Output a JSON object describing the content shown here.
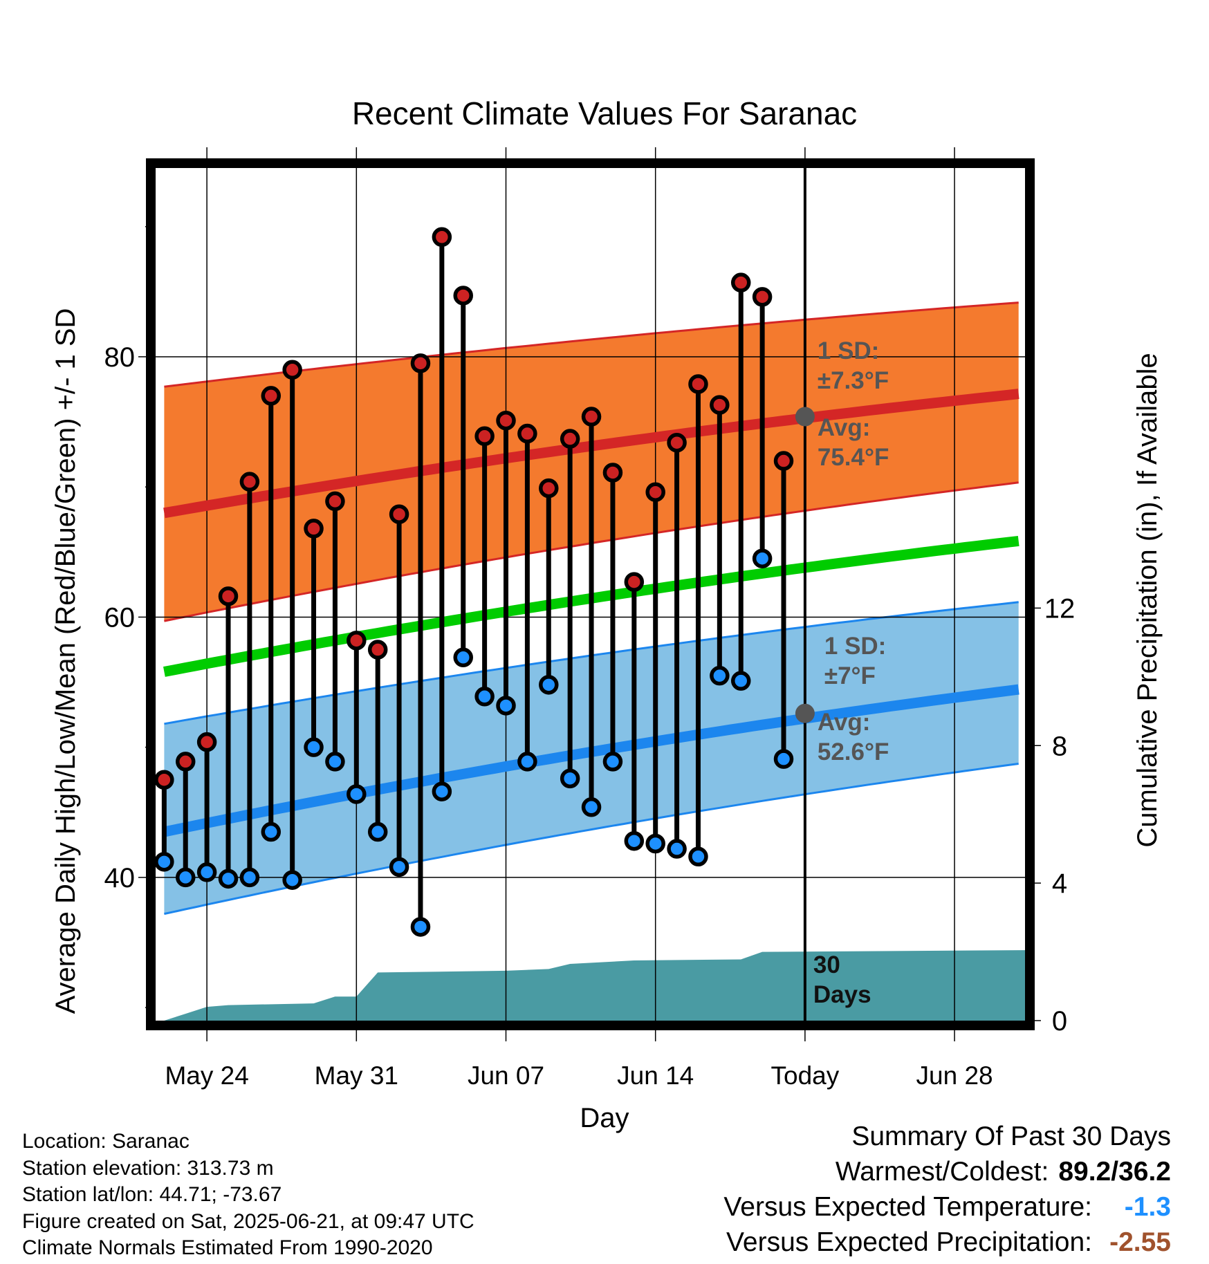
{
  "chart_data": {
    "type": "line",
    "title": "Recent Climate Values For Saranac",
    "xlabel": "Day",
    "ylabel_left": "Average Daily High/Low/Mean (Red/Blue/Green) +/- 1 SD",
    "ylabel_right": "Cumulative Precipitation (in), If Available",
    "x_tick_labels": [
      "May 24",
      "May 31",
      "Jun 07",
      "Jun 14",
      "Today",
      "Jun 28"
    ],
    "y_left_ticks": [
      40,
      60,
      80
    ],
    "y_left_range": [
      29,
      94.5
    ],
    "y_right_ticks": [
      0,
      4,
      8,
      12
    ],
    "y_right_range": [
      0,
      24.8
    ],
    "x_range_days_from_may21": [
      0.6,
      41.3
    ],
    "today_day_index": 31,
    "grid": true,
    "colors": {
      "high_band": "#f47a2e",
      "high_line": "#d42626",
      "low_band": "#85c1e6",
      "low_line": "#1c86ee",
      "mean_line": "#00cc00",
      "precip": "#4a9ba3",
      "high_marker": "#cc2222",
      "low_marker": "#1e90ff",
      "annotation": "#555555",
      "summary_temp": "#1e90ff",
      "summary_precip": "#a0522d"
    },
    "days": [
      "May 22",
      "May 23",
      "May 24",
      "May 25",
      "May 26",
      "May 27",
      "May 28",
      "May 29",
      "May 30",
      "May 31",
      "Jun 01",
      "Jun 02",
      "Jun 03",
      "Jun 04",
      "Jun 05",
      "Jun 06",
      "Jun 07",
      "Jun 08",
      "Jun 09",
      "Jun 10",
      "Jun 11",
      "Jun 12",
      "Jun 13",
      "Jun 14",
      "Jun 15",
      "Jun 16",
      "Jun 17",
      "Jun 18",
      "Jun 19",
      "Jun 20"
    ],
    "series": [
      {
        "name": "High",
        "values": [
          47.5,
          48.9,
          50.4,
          61.6,
          70.4,
          77.0,
          79.0,
          66.8,
          68.9,
          58.2,
          57.5,
          67.9,
          79.5,
          89.2,
          84.7,
          73.9,
          75.1,
          74.1,
          69.9,
          73.7,
          75.4,
          71.1,
          62.7,
          69.6,
          73.4,
          77.9,
          76.3,
          85.7,
          84.6,
          72.0
        ]
      },
      {
        "name": "Low",
        "values": [
          41.2,
          40.0,
          40.4,
          39.9,
          40.0,
          43.5,
          39.8,
          50.0,
          48.9,
          46.4,
          43.5,
          40.8,
          36.2,
          46.6,
          56.9,
          53.9,
          53.2,
          48.9,
          54.8,
          47.6,
          45.4,
          48.9,
          42.8,
          42.6,
          42.2,
          41.6,
          55.5,
          55.1,
          64.5,
          49.1
        ]
      }
    ],
    "normals": {
      "high_avg_start": 68.0,
      "high_avg_end": 77.2,
      "high_sd_upper_start": 77.7,
      "high_sd_upper_end": 84.2,
      "high_sd_lower_start": 59.7,
      "high_sd_lower_end": 70.4,
      "low_avg_start": 43.5,
      "low_avg_end": 54.5,
      "low_sd_upper_start": 51.8,
      "low_sd_upper_end": 61.2,
      "low_sd_lower_start": 37.2,
      "low_sd_lower_end": 48.8,
      "mean_start": 55.8,
      "mean_end": 65.9
    },
    "precipitation_cumulative": [
      {
        "day": 1,
        "value": 0.0
      },
      {
        "day": 2,
        "value": 0.2
      },
      {
        "day": 3,
        "value": 0.4
      },
      {
        "day": 4,
        "value": 0.45
      },
      {
        "day": 8,
        "value": 0.5
      },
      {
        "day": 9,
        "value": 0.7
      },
      {
        "day": 10,
        "value": 0.7
      },
      {
        "day": 11,
        "value": 1.4
      },
      {
        "day": 17,
        "value": 1.45
      },
      {
        "day": 19,
        "value": 1.5
      },
      {
        "day": 20,
        "value": 1.65
      },
      {
        "day": 23,
        "value": 1.75
      },
      {
        "day": 28,
        "value": 1.78
      },
      {
        "day": 29,
        "value": 2.0
      },
      {
        "day": 41.3,
        "value": 2.05
      }
    ],
    "annotations": {
      "high_sd_label": "1 SD:",
      "high_sd_value": "±7.3°F",
      "high_avg_label": "Avg:",
      "high_avg_value": "75.4°F",
      "low_sd_label": "1 SD:",
      "low_sd_value": "±7°F",
      "low_avg_label": "Avg:",
      "low_avg_value": "52.6°F",
      "high_avg_today": 75.4,
      "low_avg_today": 52.6,
      "period_label_1": "30",
      "period_label_2": "Days"
    }
  },
  "footer": {
    "location": "Location: Saranac",
    "elevation": "Station elevation: 313.73 m",
    "latlon": "Station lat/lon: 44.71; -73.67",
    "created": "Figure created on Sat, 2025-06-21, at 09:47 UTC",
    "normals": "Climate Normals Estimated From 1990-2020"
  },
  "summary": {
    "title": "Summary Of Past 30 Days",
    "warm_cold_label": "Warmest/Coldest:",
    "warm_cold_value": "89.2/36.2",
    "temp_label": "Versus Expected Temperature:",
    "temp_value": "-1.3",
    "precip_label": "Versus Expected Precipitation:",
    "precip_value": "-2.55"
  }
}
